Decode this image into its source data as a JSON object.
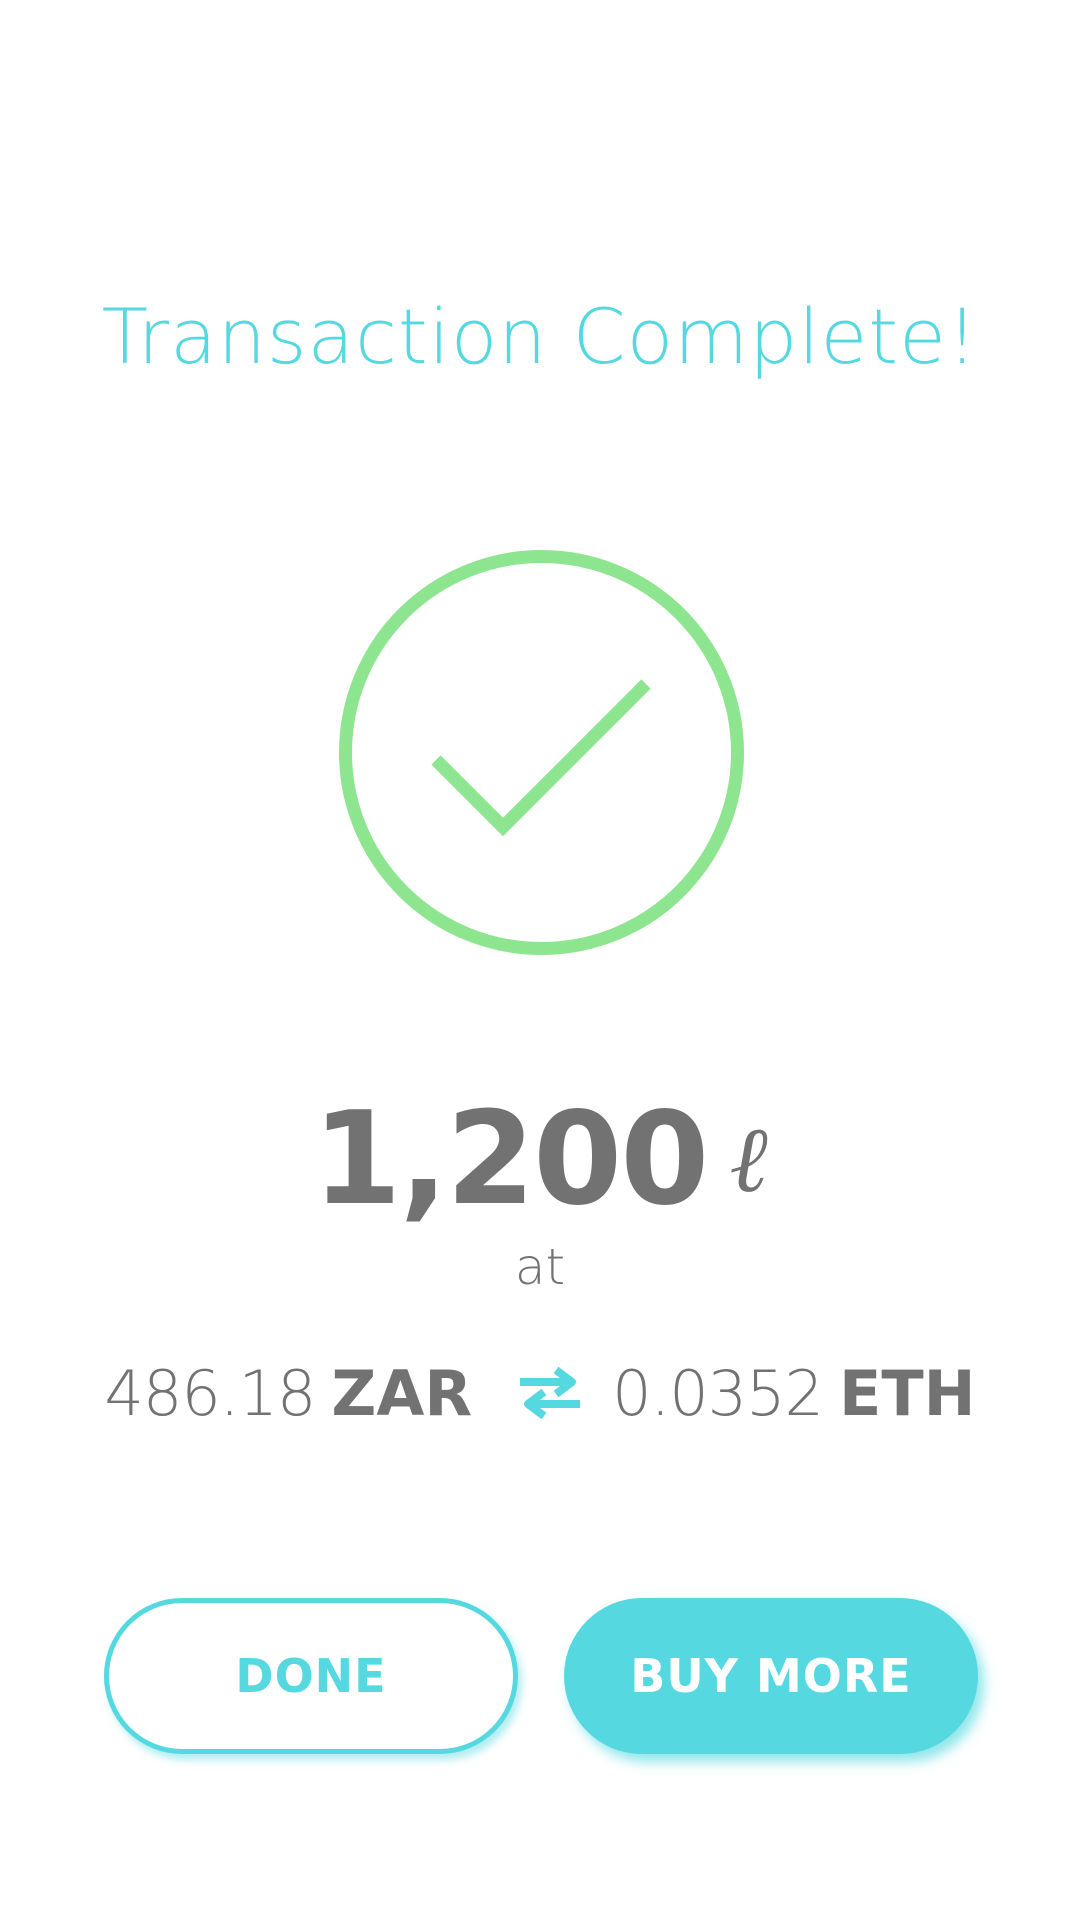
{
  "title": "Transaction Complete!",
  "status_icon": "check-circle-icon",
  "colors": {
    "accent": "#55d8e0",
    "success": "#8ee58f",
    "text": "#727272",
    "background": "#ffffff"
  },
  "amount": {
    "value": "1,200",
    "unit_symbol": "ℓ"
  },
  "at_label": "at",
  "rate": {
    "from_value": "486.18",
    "from_currency": "ZAR",
    "swap_icon": "swap-arrows-icon",
    "to_value": "0.0352",
    "to_currency": "ETH"
  },
  "buttons": {
    "done_label": "DONE",
    "buy_more_label": "BUY MORE"
  }
}
